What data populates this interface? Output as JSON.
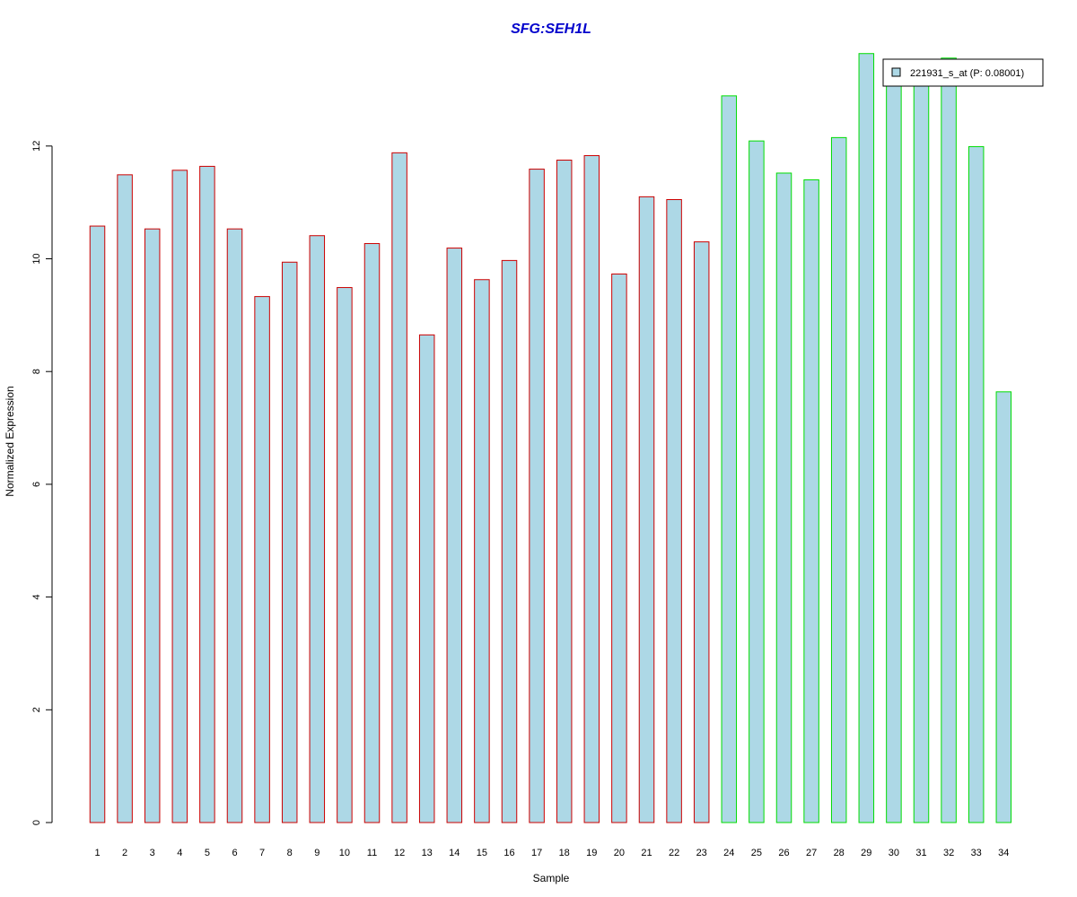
{
  "chart_data": {
    "type": "bar",
    "title": "SFG:SEH1L",
    "xlabel": "Sample",
    "ylabel": "Normalized Expression",
    "ylim": [
      0,
      13.6
    ],
    "yticks": [
      "0",
      "2",
      "4",
      "6",
      "8",
      "10",
      "12"
    ],
    "categories": [
      "1",
      "2",
      "3",
      "4",
      "5",
      "6",
      "7",
      "8",
      "9",
      "10",
      "11",
      "12",
      "13",
      "14",
      "15",
      "16",
      "17",
      "18",
      "19",
      "20",
      "21",
      "22",
      "23",
      "24",
      "25",
      "26",
      "27",
      "28",
      "29",
      "30",
      "31",
      "32",
      "33",
      "34"
    ],
    "series": [
      {
        "name": "221931_s_at (P: 0.08001)",
        "values": [
          10.58,
          11.49,
          10.53,
          11.57,
          11.64,
          10.53,
          9.33,
          9.94,
          10.41,
          9.49,
          10.27,
          11.88,
          8.65,
          10.19,
          9.63,
          9.97,
          11.59,
          11.75,
          11.83,
          9.73,
          11.1,
          11.05,
          10.3,
          12.89,
          12.09,
          11.52,
          11.4,
          12.15,
          13.64,
          13.3,
          13.3,
          13.56,
          11.99,
          7.64
        ]
      }
    ],
    "groups": [
      {
        "samples": "1-23",
        "border_color": "#cc0000"
      },
      {
        "samples": "24-34",
        "border_color": "#00dd00"
      }
    ],
    "group_sizes": [
      23,
      11
    ],
    "legend": {
      "placement": "top-right",
      "label": "221931_s_at (P: 0.08001)"
    },
    "colors": {
      "bar_fill": "#add8e6",
      "title": "#0000cc",
      "group1_border": "#cc0000",
      "group2_border": "#00dd00"
    },
    "grid": false
  }
}
